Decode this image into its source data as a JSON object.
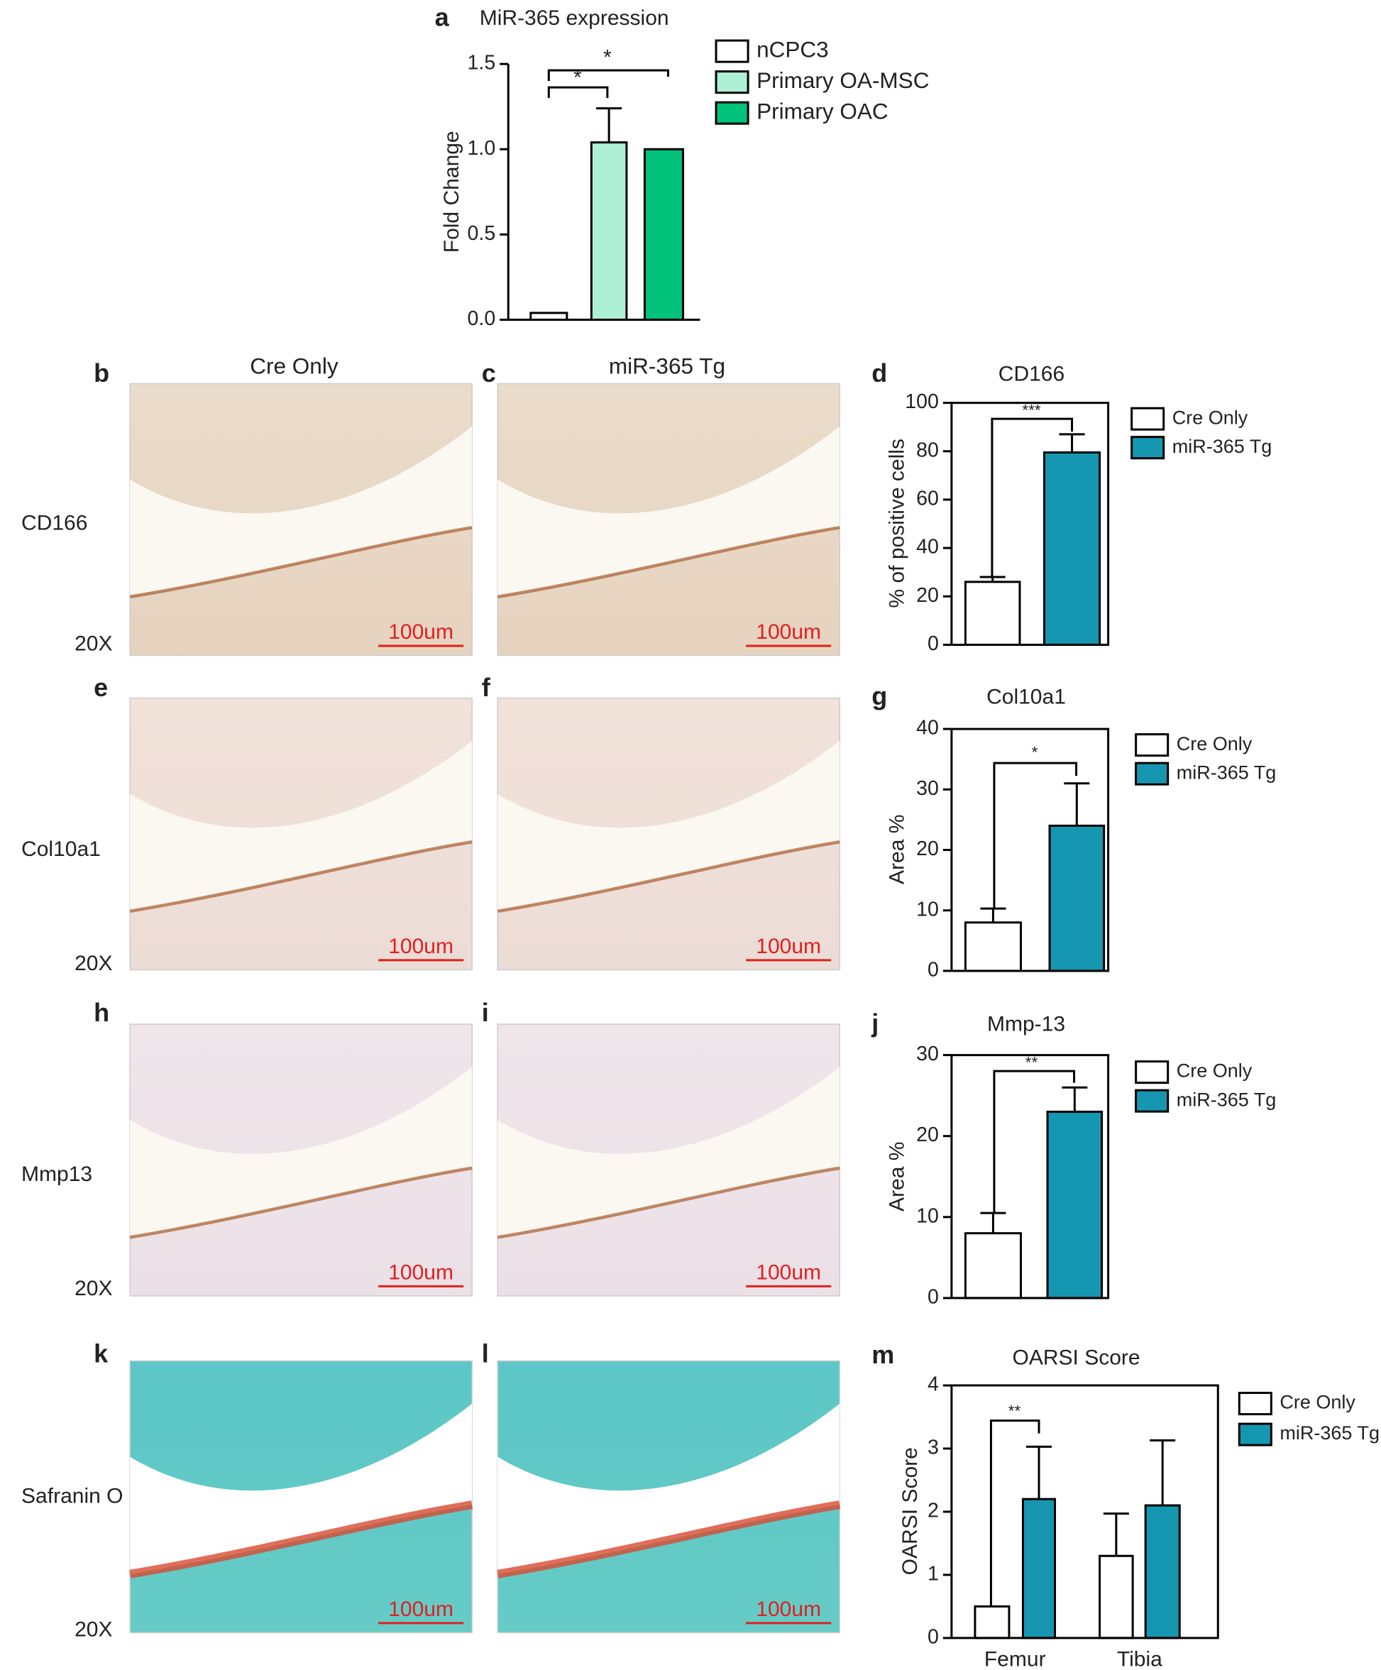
{
  "chart_data": [
    {
      "type": "bar",
      "label": "a",
      "title": "MiR-365 expression",
      "ylabel": "Fold Change",
      "series": [
        {
          "name": "nCPC3",
          "color": "#ffffff",
          "values": [
            0.04
          ],
          "errors": [
            0
          ]
        },
        {
          "name": "Primary OA-MSC",
          "color": "#aef0d6",
          "values": [
            1.04
          ],
          "errors": [
            0.2
          ]
        },
        {
          "name": "Primary OAC",
          "color": "#00c27a",
          "values": [
            1.0
          ],
          "errors": [
            0
          ]
        }
      ],
      "ylim": [
        0,
        1.5
      ],
      "yticks": [
        {
          "value": 0,
          "label": "0.0"
        },
        {
          "value": 0.5,
          "label": "0.5"
        },
        {
          "value": 1,
          "label": "1.0"
        },
        {
          "value": 1.5,
          "label": "1.5"
        }
      ],
      "annotations": [
        "*",
        "*"
      ]
    },
    {
      "type": "bar",
      "label": "d",
      "title": "CD166",
      "ylabel": "% of positive cells",
      "series": [
        {
          "name": "Cre Only",
          "color": "#ffffff",
          "values": [
            26
          ],
          "errors": [
            2
          ]
        },
        {
          "name": "miR-365 Tg",
          "color": "#1597b1",
          "values": [
            79.5
          ],
          "errors": [
            7.5
          ]
        }
      ],
      "ylim": [
        0,
        100
      ],
      "yticks": [
        0,
        20,
        40,
        60,
        80,
        100
      ],
      "annotations": [
        "***"
      ]
    },
    {
      "type": "bar",
      "label": "g",
      "title": "Col10a1",
      "ylabel": "Area %",
      "series": [
        {
          "name": "Cre Only",
          "color": "#ffffff",
          "values": [
            8
          ],
          "errors": [
            2.3
          ]
        },
        {
          "name": "miR-365 Tg",
          "color": "#1597b1",
          "values": [
            24
          ],
          "errors": [
            7
          ]
        }
      ],
      "ylim": [
        0,
        40
      ],
      "yticks": [
        0,
        10,
        20,
        30,
        40
      ],
      "annotations": [
        "*"
      ]
    },
    {
      "type": "bar",
      "label": "j",
      "title": "Mmp-13",
      "ylabel": "Area %",
      "series": [
        {
          "name": "Cre Only",
          "color": "#ffffff",
          "values": [
            8
          ],
          "errors": [
            2.5
          ]
        },
        {
          "name": "miR-365 Tg",
          "color": "#1597b1",
          "values": [
            23
          ],
          "errors": [
            3
          ]
        }
      ],
      "ylim": [
        0,
        30
      ],
      "yticks": [
        0,
        10,
        20,
        30
      ],
      "annotations": [
        "**"
      ]
    },
    {
      "type": "bar",
      "label": "m",
      "title": "OARSI Score",
      "ylabel": "OARSI Score",
      "categories": [
        "Femur",
        "Tibia"
      ],
      "series": [
        {
          "name": "Cre Only",
          "color": "#ffffff",
          "values": [
            0.5,
            1.3
          ],
          "errors": [
            0,
            0.67
          ]
        },
        {
          "name": "miR-365 Tg",
          "color": "#1597b1",
          "values": [
            2.2,
            2.1
          ],
          "errors": [
            0.83,
            1.03
          ]
        }
      ],
      "ylim": [
        0,
        4
      ],
      "yticks": [
        0,
        1,
        2,
        3,
        4
      ],
      "annotations": [
        "**"
      ]
    }
  ],
  "figure": {
    "panel_letters": [
      "b",
      "c",
      "e",
      "f",
      "h",
      "i",
      "k",
      "l"
    ],
    "column_titles": [
      "Cre Only",
      "miR-365 Tg"
    ],
    "row_labels": [
      "CD166",
      "Col10a1",
      "Mmp13",
      "Safranin O"
    ],
    "magnifications": [
      "20X",
      "20X",
      "20X",
      "20X"
    ],
    "scale_bars": [
      "100um",
      "100um",
      "100um",
      "100um",
      "100um",
      "100um",
      "100um",
      "100um"
    ]
  }
}
